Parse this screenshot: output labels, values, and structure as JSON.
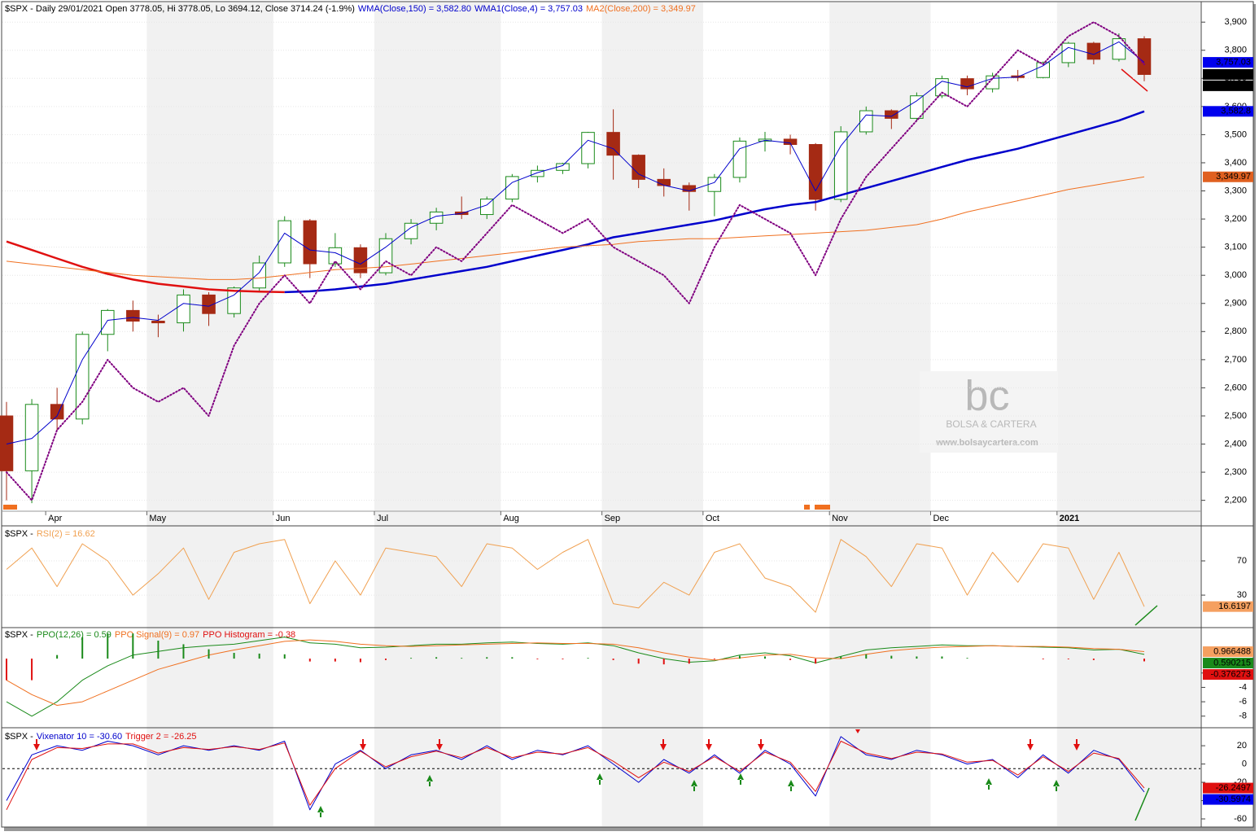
{
  "chart_data": [
    {
      "type": "candlestick",
      "title": "$SPX - Daily 29/01/2021 Open 3778.05, Hi 3778.05, Lo 3694.12, Close 3714.24 (-1.9%)",
      "categories": [
        null,
        null,
        "Apr",
        null,
        null,
        null,
        "May",
        null,
        null,
        null,
        null,
        "Jun",
        null,
        null,
        null,
        "Jul",
        null,
        null,
        null,
        null,
        "Aug",
        null,
        null,
        null,
        "Sep",
        null,
        null,
        null,
        "Oct",
        null,
        null,
        null,
        null,
        "Nov",
        null,
        null,
        null,
        "Dec",
        null,
        null,
        null,
        null,
        "2021",
        null,
        null,
        null
      ],
      "open": [
        2500,
        2305,
        2541,
        2489,
        2790,
        2875,
        2837,
        2831,
        2930,
        2864,
        2955,
        3044,
        3194,
        3041,
        3098,
        3009,
        3130,
        3185,
        3225,
        3216,
        3271,
        3351,
        3373,
        3397,
        3508,
        3427,
        3341,
        3319,
        3298,
        3348,
        3477,
        3484,
        3465,
        3270,
        3510,
        3585,
        3558,
        3638,
        3699,
        3663,
        3709,
        3703,
        3756,
        3825,
        3768,
        3841
      ],
      "high": [
        2550,
        2560,
        2600,
        2800,
        2880,
        2910,
        2860,
        2950,
        2940,
        2960,
        3070,
        3210,
        3200,
        3150,
        3110,
        3150,
        3200,
        3240,
        3280,
        3280,
        3360,
        3390,
        3400,
        3510,
        3590,
        3430,
        3380,
        3330,
        3360,
        3490,
        3510,
        3500,
        3470,
        3530,
        3600,
        3590,
        3650,
        3710,
        3710,
        3720,
        3730,
        3760,
        3830,
        3830,
        3860,
        3850
      ],
      "low": [
        2200,
        2190,
        2450,
        2470,
        2730,
        2800,
        2780,
        2800,
        2820,
        2850,
        2940,
        3030,
        2990,
        3030,
        2990,
        3000,
        3110,
        3160,
        3200,
        3200,
        3260,
        3330,
        3360,
        3380,
        3340,
        3310,
        3280,
        3230,
        3210,
        3330,
        3440,
        3430,
        3230,
        3260,
        3500,
        3520,
        3550,
        3630,
        3640,
        3650,
        3690,
        3700,
        3740,
        3750,
        3760,
        3690
      ],
      "close": [
        2305,
        2541,
        2489,
        2790,
        2875,
        2837,
        2831,
        2930,
        2864,
        2955,
        3044,
        3194,
        3041,
        3098,
        3009,
        3130,
        3185,
        3225,
        3216,
        3271,
        3351,
        3373,
        3397,
        3508,
        3427,
        3341,
        3319,
        3298,
        3348,
        3477,
        3484,
        3465,
        3270,
        3510,
        3585,
        3558,
        3638,
        3699,
        3663,
        3709,
        3703,
        3756,
        3825,
        3768,
        3841,
        3714
      ],
      "up_color": "#1a8a1a",
      "down_color": "#a52a14",
      "series": [
        {
          "name": "WMA(Close,150) = 3,582.80",
          "color": "#0000cc",
          "down_color": "#e01010",
          "width": 2.5,
          "values": [
            3120,
            3090,
            3060,
            3030,
            3005,
            2985,
            2970,
            2960,
            2950,
            2945,
            2942,
            2940,
            2943,
            2950,
            2960,
            2970,
            2985,
            3000,
            3015,
            3030,
            3050,
            3070,
            3090,
            3110,
            3135,
            3150,
            3165,
            3180,
            3195,
            3215,
            3235,
            3250,
            3260,
            3285,
            3310,
            3335,
            3360,
            3385,
            3410,
            3430,
            3450,
            3475,
            3500,
            3525,
            3550,
            3582.8
          ]
        },
        {
          "name": "WMA1(Close,4) = 3,757.03",
          "color": "#0000cc",
          "width": 1,
          "values": [
            2400,
            2420,
            2500,
            2700,
            2840,
            2850,
            2840,
            2900,
            2890,
            2930,
            3010,
            3150,
            3090,
            3080,
            3040,
            3100,
            3170,
            3210,
            3220,
            3250,
            3330,
            3365,
            3390,
            3480,
            3450,
            3360,
            3320,
            3300,
            3330,
            3450,
            3480,
            3470,
            3300,
            3460,
            3570,
            3565,
            3620,
            3690,
            3670,
            3700,
            3705,
            3745,
            3810,
            3785,
            3830,
            3757
          ]
        },
        {
          "name": "MA2(Close,200) = 3,349.97",
          "color": "#f07020",
          "width": 1,
          "values": [
            3050,
            3040,
            3030,
            3020,
            3010,
            3000,
            2995,
            2990,
            2985,
            2985,
            2990,
            3000,
            3010,
            3020,
            3025,
            3030,
            3040,
            3050,
            3060,
            3070,
            3080,
            3090,
            3100,
            3105,
            3110,
            3120,
            3125,
            3130,
            3130,
            3135,
            3140,
            3145,
            3150,
            3155,
            3160,
            3170,
            3180,
            3200,
            3225,
            3245,
            3265,
            3285,
            3305,
            3320,
            3335,
            3349.97
          ]
        },
        {
          "color": "#800080",
          "dash": "dotted",
          "width": 2,
          "values": [
            2300,
            2200,
            2450,
            2550,
            2700,
            2600,
            2550,
            2600,
            2500,
            2750,
            2900,
            3000,
            2900,
            3050,
            2950,
            3050,
            3000,
            3100,
            3050,
            3150,
            3250,
            3200,
            3150,
            3200,
            3100,
            3050,
            3000,
            2900,
            3100,
            3250,
            3200,
            3150,
            3000,
            3200,
            3350,
            3450,
            3550,
            3650,
            3600,
            3700,
            3800,
            3750,
            3850,
            3900,
            3850,
            3750
          ]
        }
      ],
      "ylim": [
        2170,
        3970
      ],
      "yticks": [
        {
          "value": 2200,
          "label": "2,200"
        },
        {
          "value": 2300,
          "label": "2,300"
        },
        {
          "value": 2400,
          "label": "2,400"
        },
        {
          "value": 2500,
          "label": "2,500"
        },
        {
          "value": 2600,
          "label": "2,600"
        },
        {
          "value": 2700,
          "label": "2,700"
        },
        {
          "value": 2800,
          "label": "2,800"
        },
        {
          "value": 2900,
          "label": "2,900"
        },
        {
          "value": 3000,
          "label": "3,000"
        },
        {
          "value": 3100,
          "label": "3,100"
        },
        {
          "value": 3200,
          "label": "3,200"
        },
        {
          "value": 3300,
          "label": "3,300"
        },
        {
          "value": 3400,
          "label": "3,400"
        },
        {
          "value": 3500,
          "label": "3,500"
        },
        {
          "value": 3600,
          "label": "3,600"
        },
        {
          "value": 3700,
          "label": "3,700"
        },
        {
          "value": 3800,
          "label": "3,800"
        },
        {
          "value": 3900,
          "label": "3,900"
        }
      ],
      "grid": true,
      "last_labels": [
        {
          "value": 3757.03,
          "label": "3,757.03",
          "color": "#0000ee"
        },
        {
          "value": 3714.24,
          "label": "3,714.24",
          "color": "#000000"
        },
        {
          "value": 3714.24,
          "label": "3,714.24",
          "color": "#000000"
        },
        {
          "value": 3582.8,
          "label": "3,582.8",
          "color": "#0000ee"
        },
        {
          "value": 3349.97,
          "label": "3,349.97",
          "color": "#e06020"
        }
      ],
      "watermark": {
        "logo": "bc",
        "name": "BOLSA & CARTERA",
        "url": "www.bolsaycartera.com"
      }
    },
    {
      "type": "line",
      "title": "$SPX -",
      "series": [
        {
          "name": "RSI(2) = 16.62",
          "color": "#f0a050",
          "width": 1,
          "values": [
            60,
            85,
            40,
            90,
            70,
            30,
            55,
            85,
            25,
            80,
            90,
            95,
            20,
            70,
            30,
            85,
            80,
            75,
            40,
            90,
            85,
            60,
            80,
            95,
            20,
            15,
            45,
            30,
            80,
            90,
            50,
            40,
            10,
            95,
            75,
            40,
            90,
            85,
            30,
            80,
            45,
            90,
            85,
            25,
            80,
            16.62
          ]
        }
      ],
      "ylim": [
        -7,
        109
      ],
      "yticks": [
        30,
        70
      ],
      "grid": true,
      "last_labels": [
        {
          "value": 16.6197,
          "label": "16.6197",
          "color": "#f5a060"
        }
      ]
    },
    {
      "type": "line",
      "title": "$SPX -",
      "series": [
        {
          "name": "PPO(12,26) = 0.59",
          "color": "#1a8a1a",
          "width": 1,
          "values": [
            -6,
            -8,
            -6,
            -3,
            -1,
            0.5,
            1,
            1.5,
            1.8,
            2,
            2.5,
            3,
            2.2,
            2,
            1.5,
            1.6,
            1.8,
            2,
            2,
            2.2,
            2.3,
            2.1,
            2,
            2.2,
            1.8,
            0.8,
            0,
            -0.5,
            -0.3,
            0.5,
            0.8,
            0.4,
            -0.6,
            0.3,
            1.2,
            1.5,
            1.7,
            1.9,
            1.8,
            1.8,
            1.7,
            1.6,
            1.5,
            1.2,
            1.3,
            0.59
          ]
        },
        {
          "name": "PPO Signal(9) = 0.97",
          "color": "#f07020",
          "width": 1,
          "values": [
            -3,
            -5,
            -6.5,
            -6,
            -4.5,
            -3,
            -1.5,
            -0.5,
            0.5,
            1.2,
            1.8,
            2.4,
            2.6,
            2.4,
            2,
            1.8,
            1.7,
            1.8,
            1.9,
            2,
            2.1,
            2.2,
            2.1,
            2.1,
            2,
            1.5,
            0.8,
            0.2,
            -0.2,
            0.1,
            0.5,
            0.6,
            0.1,
            0,
            0.6,
            1.1,
            1.4,
            1.6,
            1.7,
            1.8,
            1.7,
            1.7,
            1.6,
            1.4,
            1.3,
            0.97
          ]
        },
        {
          "name": "PPO Histogram = -0.38",
          "color": "#e01010",
          "up_color": "#1a8a1a",
          "style": "histogram",
          "values": [
            -3,
            -3,
            0.5,
            3,
            3.5,
            3.5,
            2.5,
            2,
            1.3,
            0.8,
            0.7,
            0.6,
            -0.4,
            -0.4,
            -0.5,
            -0.2,
            0.1,
            0.2,
            0.1,
            0.2,
            0.2,
            -0.1,
            -0.1,
            0.1,
            -0.2,
            -0.7,
            -0.8,
            -0.7,
            -0.1,
            0.4,
            0.3,
            -0.2,
            -0.7,
            0.3,
            0.6,
            0.4,
            0.3,
            0.3,
            0.1,
            0,
            0,
            -0.1,
            -0.1,
            -0.2,
            0,
            -0.38
          ]
        }
      ],
      "ylim": [
        -9.5,
        4.2
      ],
      "yticks": [
        -8,
        -6,
        -4,
        -2
      ],
      "last_labels": [
        {
          "value": 0.966488,
          "label": "0.966488",
          "color": "#f5a060"
        },
        {
          "value": 0.590215,
          "label": "0.590215",
          "color": "#1a8a1a"
        },
        {
          "value": -0.376273,
          "label": "-0.376273",
          "color": "#e01010"
        }
      ]
    },
    {
      "type": "line",
      "title": "$SPX -",
      "series": [
        {
          "name": "Vixenator 10 = -30.60",
          "color": "#0000cc",
          "width": 1,
          "values": [
            -40,
            10,
            20,
            15,
            25,
            20,
            10,
            20,
            15,
            20,
            15,
            25,
            -50,
            0,
            15,
            -5,
            10,
            15,
            5,
            20,
            5,
            15,
            10,
            20,
            0,
            -20,
            5,
            -10,
            10,
            -10,
            15,
            0,
            -35,
            30,
            10,
            5,
            15,
            10,
            0,
            5,
            -15,
            10,
            -10,
            15,
            5,
            -30.6
          ]
        },
        {
          "name": "Trigger 2 = -26.25",
          "color": "#e01010",
          "width": 1,
          "values": [
            -50,
            5,
            18,
            17,
            22,
            22,
            12,
            18,
            16,
            19,
            16,
            23,
            -45,
            -5,
            14,
            -3,
            8,
            14,
            7,
            18,
            7,
            13,
            11,
            18,
            3,
            -15,
            2,
            -8,
            8,
            -8,
            13,
            2,
            -30,
            25,
            12,
            6,
            13,
            11,
            2,
            4,
            -12,
            8,
            -8,
            12,
            6,
            -26.25
          ]
        }
      ],
      "ylim": [
        -68,
        37
      ],
      "yticks": [
        -60,
        -40,
        -20,
        0,
        20
      ],
      "hline": -5,
      "last_labels": [
        {
          "value": -26.2497,
          "label": "-26.2497",
          "color": "#e01010"
        },
        {
          "value": -30.5974,
          "label": "-30.5974",
          "color": "#0000ee"
        }
      ]
    }
  ]
}
